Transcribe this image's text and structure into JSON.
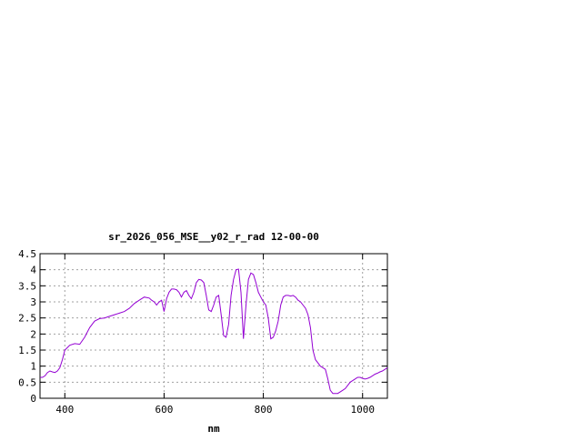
{
  "chart_data": {
    "type": "line",
    "title": "sr_2026_056_MSE__y02_r_rad 12-00-00",
    "xlabel": "nm",
    "ylabel": "",
    "xlim": [
      350,
      1050
    ],
    "ylim": [
      0,
      4.5
    ],
    "x_ticks": [
      400,
      600,
      800,
      1000
    ],
    "y_ticks": [
      0,
      0.5,
      1,
      1.5,
      2,
      2.5,
      3,
      3.5,
      4,
      4.5
    ],
    "x_tick_labels": [
      "400",
      "600",
      "800",
      "1000"
    ],
    "y_tick_labels": [
      "0",
      "0.5",
      "1",
      "1.5",
      "2",
      "2.5",
      "3",
      "3.5",
      "4",
      "4.5"
    ],
    "grid": true,
    "legend": "none",
    "series": [
      {
        "color": "#9400d3",
        "x": [
          350,
          355,
          360,
          365,
          370,
          375,
          380,
          385,
          390,
          395,
          400,
          410,
          420,
          430,
          440,
          450,
          460,
          470,
          480,
          490,
          500,
          510,
          520,
          530,
          540,
          550,
          560,
          570,
          575,
          580,
          585,
          590,
          595,
          600,
          605,
          610,
          615,
          620,
          625,
          630,
          635,
          640,
          645,
          650,
          655,
          660,
          665,
          670,
          675,
          680,
          685,
          690,
          695,
          700,
          705,
          710,
          715,
          720,
          725,
          730,
          735,
          740,
          745,
          750,
          755,
          760,
          765,
          770,
          775,
          780,
          785,
          790,
          795,
          800,
          805,
          810,
          815,
          820,
          825,
          830,
          835,
          840,
          845,
          850,
          855,
          860,
          865,
          870,
          875,
          880,
          885,
          890,
          895,
          900,
          905,
          910,
          915,
          920,
          925,
          930,
          935,
          940,
          945,
          950,
          955,
          960,
          965,
          970,
          975,
          980,
          985,
          990,
          995,
          1000,
          1005,
          1010,
          1015,
          1020,
          1025,
          1030,
          1035,
          1040,
          1045,
          1050
        ],
        "y": [
          0.65,
          0.65,
          0.7,
          0.8,
          0.85,
          0.82,
          0.8,
          0.85,
          0.95,
          1.2,
          1.5,
          1.65,
          1.7,
          1.68,
          1.9,
          2.2,
          2.4,
          2.48,
          2.5,
          2.55,
          2.6,
          2.65,
          2.7,
          2.8,
          2.95,
          3.05,
          3.15,
          3.12,
          3.05,
          3.0,
          2.9,
          3.0,
          3.05,
          2.7,
          3.1,
          3.3,
          3.4,
          3.4,
          3.38,
          3.3,
          3.15,
          3.3,
          3.35,
          3.2,
          3.1,
          3.3,
          3.6,
          3.7,
          3.68,
          3.6,
          3.2,
          2.75,
          2.7,
          2.9,
          3.15,
          3.2,
          2.6,
          1.95,
          1.9,
          2.3,
          3.2,
          3.7,
          4.0,
          4.02,
          3.3,
          1.85,
          2.9,
          3.7,
          3.9,
          3.85,
          3.6,
          3.3,
          3.15,
          3.0,
          2.9,
          2.5,
          1.85,
          1.9,
          2.1,
          2.4,
          2.9,
          3.15,
          3.2,
          3.2,
          3.18,
          3.2,
          3.15,
          3.05,
          3.0,
          2.9,
          2.8,
          2.6,
          2.2,
          1.5,
          1.2,
          1.1,
          1.0,
          0.95,
          0.9,
          0.6,
          0.25,
          0.15,
          0.15,
          0.15,
          0.2,
          0.25,
          0.3,
          0.4,
          0.5,
          0.55,
          0.6,
          0.65,
          0.65,
          0.62,
          0.6,
          0.62,
          0.65,
          0.7,
          0.75,
          0.78,
          0.82,
          0.85,
          0.9,
          0.95
        ]
      }
    ]
  }
}
